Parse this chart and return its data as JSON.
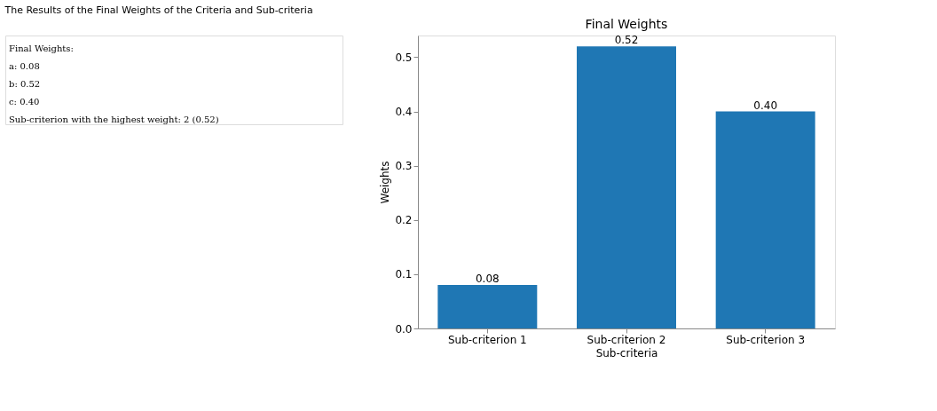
{
  "chart_data": {
    "type": "bar",
    "title": "Final Weights",
    "xlabel": "Sub-criteria",
    "ylabel": "Weights",
    "categories": [
      "Sub-criterion 1",
      "Sub-criterion 2",
      "Sub-criterion 3"
    ],
    "values": [
      0.08,
      0.52,
      0.4
    ],
    "value_labels": [
      "0.08",
      "0.52",
      "0.40"
    ],
    "color": "#1f77b4",
    "ylim": [
      0,
      0.54
    ],
    "yticks": [
      {
        "value": 0,
        "label": "0.0"
      },
      0.1,
      0.2,
      0.3,
      0.4,
      0.5
    ],
    "grid": false,
    "annotations": [
      "The Results of the Final Weights of the Criteria and Sub-criteria",
      "Final Weights:",
      "a: 0.08",
      "b: 0.52",
      "c: 0.40",
      "Sub-criterion with the highest weight: 2 (0.52)"
    ]
  }
}
